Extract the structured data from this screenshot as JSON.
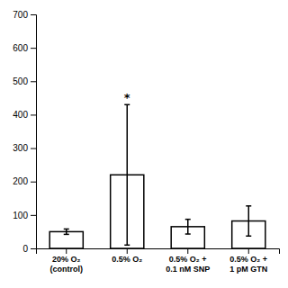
{
  "chart_data": {
    "type": "bar",
    "categories": [
      "20% O₂\n(control)",
      "0.5% O₂",
      "0.5% O₂ +\n0.1 nM SNP",
      "0.5% O₂ +\n1 pM GTN"
    ],
    "values": [
      50,
      220,
      65,
      82
    ],
    "errors": [
      8,
      210,
      22,
      45
    ],
    "color": "#ffffff",
    "ylim": [
      0,
      700
    ],
    "yticks": [
      0,
      100,
      200,
      300,
      400,
      500,
      600,
      700
    ],
    "grid": false,
    "annotations": [
      {
        "text": "*",
        "category": "0.5% O₂"
      }
    ]
  }
}
